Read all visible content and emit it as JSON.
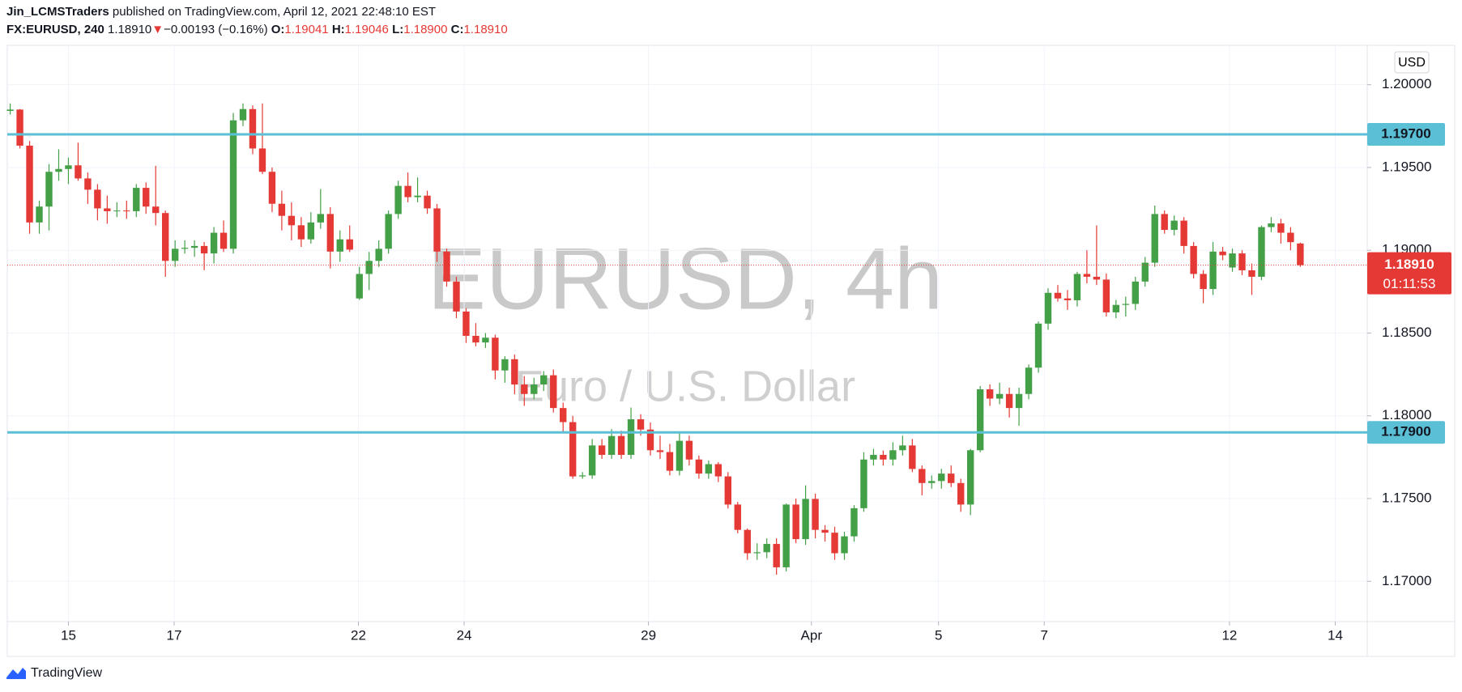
{
  "header": {
    "author": "Jin_LCMSTraders",
    "published": "published on TradingView.com, April 12, 2021 22:48:10 EST",
    "symbol": "FX:EURUSD, 240",
    "last": "1.18910",
    "arrow": "▼",
    "change": "−0.00193 (−0.16%)",
    "open_label": "O:",
    "open": "1.19041",
    "high_label": "H:",
    "high": "1.19046",
    "low_label": "L:",
    "low": "1.18900",
    "close_label": "C:",
    "close": "1.18910"
  },
  "footer": {
    "brand": "TradingView"
  },
  "chart_data": {
    "type": "candlestick",
    "title": "EURUSD, 4h",
    "subtitle": "Euro / U.S. Dollar",
    "currency": "USD",
    "up_color": "#43a047",
    "down_color": "#e53935",
    "level_color": "#5bc0d6",
    "grid": true,
    "xlim": [
      -0.3,
      139.9
    ],
    "xticks": [
      {
        "value": 6.0,
        "label": "15"
      },
      {
        "value": 16.9,
        "label": "17"
      },
      {
        "value": 35.9,
        "label": "22"
      },
      {
        "value": 46.8,
        "label": "24"
      },
      {
        "value": 65.8,
        "label": "29"
      },
      {
        "value": 82.6,
        "label": "Apr"
      },
      {
        "value": 95.7,
        "label": "5"
      },
      {
        "value": 106.6,
        "label": "7"
      },
      {
        "value": 125.7,
        "label": "12"
      },
      {
        "value": 136.6,
        "label": "14"
      }
    ],
    "ylim": [
      1.16757,
      1.20238
    ],
    "yticks": [
      {
        "value": 1.17,
        "label": "1.17000"
      },
      {
        "value": 1.175,
        "label": "1.17500"
      },
      {
        "value": 1.18,
        "label": "1.18000"
      },
      {
        "value": 1.185,
        "label": "1.18500"
      },
      {
        "value": 1.19,
        "label": "1.19000"
      },
      {
        "value": 1.195,
        "label": "1.19500"
      },
      {
        "value": 1.2,
        "label": "1.20000"
      }
    ],
    "levels": [
      {
        "value": 1.197,
        "label": "1.19700"
      },
      {
        "value": 1.179,
        "label": "1.17900"
      }
    ],
    "last_price": {
      "value": 1.1891,
      "label": "1.18910"
    },
    "countdown": "01:11:53",
    "ohlc": [
      [
        1.19842,
        1.19887,
        1.1982,
        1.1985
      ],
      [
        1.1985,
        1.19853,
        1.19615,
        1.19632
      ],
      [
        1.19632,
        1.1966,
        1.191,
        1.19168
      ],
      [
        1.19168,
        1.193,
        1.191,
        1.19264
      ],
      [
        1.19264,
        1.1952,
        1.1912,
        1.19474
      ],
      [
        1.19474,
        1.1961,
        1.1942,
        1.19491
      ],
      [
        1.19491,
        1.1956,
        1.194,
        1.19513
      ],
      [
        1.19513,
        1.1965,
        1.1942,
        1.19434
      ],
      [
        1.19434,
        1.1947,
        1.1928,
        1.19366
      ],
      [
        1.19366,
        1.194,
        1.1918,
        1.19253
      ],
      [
        1.19253,
        1.1933,
        1.1916,
        1.19236
      ],
      [
        1.19236,
        1.1929,
        1.192,
        1.1924
      ],
      [
        1.1924,
        1.193,
        1.1919,
        1.19236
      ],
      [
        1.19236,
        1.194,
        1.192,
        1.19377
      ],
      [
        1.19377,
        1.1941,
        1.1922,
        1.19264
      ],
      [
        1.19264,
        1.1951,
        1.1915,
        1.19225
      ],
      [
        1.19225,
        1.1924,
        1.1884,
        1.18936
      ],
      [
        1.18936,
        1.1906,
        1.189,
        1.19009
      ],
      [
        1.19009,
        1.1906,
        1.1898,
        1.19015
      ],
      [
        1.19015,
        1.1906,
        1.1896,
        1.19026
      ],
      [
        1.19026,
        1.1905,
        1.1888,
        1.18981
      ],
      [
        1.18981,
        1.1914,
        1.1892,
        1.19106
      ],
      [
        1.19106,
        1.1918,
        1.1899,
        1.19009
      ],
      [
        1.19009,
        1.1983,
        1.1898,
        1.19785
      ],
      [
        1.19785,
        1.19887,
        1.1975,
        1.19853
      ],
      [
        1.19853,
        1.19875,
        1.1958,
        1.19615
      ],
      [
        1.19615,
        1.19887,
        1.1946,
        1.19474
      ],
      [
        1.19474,
        1.195,
        1.1923,
        1.19281
      ],
      [
        1.19281,
        1.1936,
        1.1912,
        1.19208
      ],
      [
        1.19208,
        1.1929,
        1.1906,
        1.19151
      ],
      [
        1.19151,
        1.192,
        1.1902,
        1.19066
      ],
      [
        1.19066,
        1.1923,
        1.1904,
        1.19168
      ],
      [
        1.19168,
        1.1937,
        1.1913,
        1.19219
      ],
      [
        1.19219,
        1.1926,
        1.1889,
        1.18992
      ],
      [
        1.18992,
        1.1912,
        1.1893,
        1.19066
      ],
      [
        1.19066,
        1.1915,
        1.1899,
        1.19004
      ],
      [
        1.18709,
        1.189,
        1.187,
        1.18857
      ],
      [
        1.18857,
        1.1899,
        1.1876,
        1.18936
      ],
      [
        1.18936,
        1.1906,
        1.189,
        1.19009
      ],
      [
        1.19009,
        1.1924,
        1.1898,
        1.19219
      ],
      [
        1.19219,
        1.1942,
        1.1919,
        1.19389
      ],
      [
        1.19389,
        1.1947,
        1.1929,
        1.19321
      ],
      [
        1.19321,
        1.1944,
        1.1929,
        1.1933
      ],
      [
        1.1933,
        1.1936,
        1.1922,
        1.19253
      ],
      [
        1.19253,
        1.1928,
        1.1893,
        1.18992
      ],
      [
        1.18992,
        1.1901,
        1.1878,
        1.18811
      ],
      [
        1.18811,
        1.1884,
        1.1859,
        1.1863
      ],
      [
        1.1863,
        1.1865,
        1.1844,
        1.18483
      ],
      [
        1.18483,
        1.1856,
        1.1842,
        1.18443
      ],
      [
        1.18443,
        1.185,
        1.1841,
        1.18472
      ],
      [
        1.18472,
        1.1849,
        1.1822,
        1.18274
      ],
      [
        1.18274,
        1.1836,
        1.182,
        1.18342
      ],
      [
        1.18342,
        1.1837,
        1.1813,
        1.18189
      ],
      [
        1.18189,
        1.1824,
        1.1806,
        1.18132
      ],
      [
        1.18132,
        1.1823,
        1.181,
        1.18189
      ],
      [
        1.18189,
        1.1827,
        1.1815,
        1.18245
      ],
      [
        1.18245,
        1.1828,
        1.1802,
        1.18047
      ],
      [
        1.18047,
        1.1808,
        1.179,
        1.17962
      ],
      [
        1.17962,
        1.18,
        1.1762,
        1.17634
      ],
      [
        1.17634,
        1.1766,
        1.1762,
        1.1764
      ],
      [
        1.1764,
        1.1786,
        1.1762,
        1.17821
      ],
      [
        1.17821,
        1.1786,
        1.1774,
        1.17764
      ],
      [
        1.17764,
        1.1792,
        1.1774,
        1.17878
      ],
      [
        1.17878,
        1.1791,
        1.1774,
        1.17764
      ],
      [
        1.17764,
        1.1805,
        1.1774,
        1.17979
      ],
      [
        1.17979,
        1.1801,
        1.1788,
        1.17917
      ],
      [
        1.17917,
        1.1796,
        1.1776,
        1.17792
      ],
      [
        1.17792,
        1.1788,
        1.1774,
        1.17781
      ],
      [
        1.17781,
        1.1783,
        1.1764,
        1.17668
      ],
      [
        1.17668,
        1.179,
        1.1764,
        1.17849
      ],
      [
        1.17849,
        1.1788,
        1.177,
        1.17736
      ],
      [
        1.17736,
        1.1776,
        1.1762,
        1.17651
      ],
      [
        1.17651,
        1.1773,
        1.1762,
        1.17708
      ],
      [
        1.17708,
        1.1772,
        1.176,
        1.17634
      ],
      [
        1.17634,
        1.1766,
        1.1744,
        1.17464
      ],
      [
        1.17464,
        1.1748,
        1.1729,
        1.17311
      ],
      [
        1.17311,
        1.1732,
        1.1713,
        1.1717
      ],
      [
        1.1717,
        1.1723,
        1.1713,
        1.17176
      ],
      [
        1.17176,
        1.1726,
        1.1714,
        1.17226
      ],
      [
        1.17226,
        1.1726,
        1.1704,
        1.17085
      ],
      [
        1.17085,
        1.1747,
        1.1706,
        1.17464
      ],
      [
        1.17464,
        1.175,
        1.1723,
        1.17255
      ],
      [
        1.17255,
        1.1758,
        1.1722,
        1.17498
      ],
      [
        1.17498,
        1.1753,
        1.1726,
        1.17311
      ],
      [
        1.17311,
        1.1734,
        1.1724,
        1.17294
      ],
      [
        1.17294,
        1.1733,
        1.1713,
        1.1717
      ],
      [
        1.1717,
        1.173,
        1.1713,
        1.17272
      ],
      [
        1.17272,
        1.1746,
        1.1724,
        1.17442
      ],
      [
        1.17442,
        1.1778,
        1.1742,
        1.17736
      ],
      [
        1.17736,
        1.178,
        1.177,
        1.17764
      ],
      [
        1.17764,
        1.1779,
        1.177,
        1.17736
      ],
      [
        1.17736,
        1.1784,
        1.177,
        1.17792
      ],
      [
        1.17792,
        1.1788,
        1.1776,
        1.17821
      ],
      [
        1.17821,
        1.1786,
        1.1766,
        1.17679
      ],
      [
        1.17679,
        1.177,
        1.1752,
        1.17594
      ],
      [
        1.17594,
        1.1764,
        1.1756,
        1.17606
      ],
      [
        1.17606,
        1.1768,
        1.1756,
        1.17651
      ],
      [
        1.17651,
        1.177,
        1.1757,
        1.17594
      ],
      [
        1.17594,
        1.1762,
        1.1742,
        1.17464
      ],
      [
        1.17464,
        1.178,
        1.174,
        1.17792
      ],
      [
        1.17792,
        1.1818,
        1.1778,
        1.1816
      ],
      [
        1.1816,
        1.1819,
        1.1806,
        1.18104
      ],
      [
        1.18104,
        1.182,
        1.1807,
        1.18132
      ],
      [
        1.18132,
        1.1817,
        1.1799,
        1.18047
      ],
      [
        1.18047,
        1.1817,
        1.1794,
        1.18132
      ],
      [
        1.18132,
        1.1831,
        1.181,
        1.18291
      ],
      [
        1.18291,
        1.1857,
        1.1826,
        1.18557
      ],
      [
        1.18557,
        1.1877,
        1.1852,
        1.18743
      ],
      [
        1.18743,
        1.1879,
        1.1869,
        1.18709
      ],
      [
        1.18709,
        1.1876,
        1.1864,
        1.18698
      ],
      [
        1.18698,
        1.1887,
        1.1866,
        1.18857
      ],
      [
        1.18857,
        1.19,
        1.188,
        1.1884
      ],
      [
        1.1884,
        1.1915,
        1.1879,
        1.18823
      ],
      [
        1.18823,
        1.1886,
        1.186,
        1.18625
      ],
      [
        1.18625,
        1.187,
        1.1859,
        1.1867
      ],
      [
        1.1867,
        1.1872,
        1.186,
        1.18676
      ],
      [
        1.18676,
        1.1884,
        1.1864,
        1.18811
      ],
      [
        1.18811,
        1.1896,
        1.1878,
        1.18925
      ],
      [
        1.18925,
        1.1927,
        1.189,
        1.19219
      ],
      [
        1.19219,
        1.1924,
        1.191,
        1.19123
      ],
      [
        1.19123,
        1.1921,
        1.1909,
        1.19179
      ],
      [
        1.19179,
        1.192,
        1.1898,
        1.19026
      ],
      [
        1.19026,
        1.1905,
        1.1883,
        1.18857
      ],
      [
        1.18857,
        1.1888,
        1.1868,
        1.18766
      ],
      [
        1.18766,
        1.1905,
        1.1873,
        1.18992
      ],
      [
        1.18992,
        1.1902,
        1.1894,
        1.1897
      ],
      [
        1.18896,
        1.1901,
        1.1887,
        1.18981
      ],
      [
        1.18981,
        1.19,
        1.1885,
        1.18879
      ],
      [
        1.18879,
        1.1892,
        1.1873,
        1.1884
      ],
      [
        1.1884,
        1.1915,
        1.1882,
        1.1914
      ],
      [
        1.1914,
        1.192,
        1.1911,
        1.19162
      ],
      [
        1.19162,
        1.1919,
        1.1904,
        1.19106
      ],
      [
        1.19106,
        1.1914,
        1.19,
        1.19049
      ],
      [
        1.19041,
        1.19046,
        1.189,
        1.1891
      ]
    ]
  }
}
